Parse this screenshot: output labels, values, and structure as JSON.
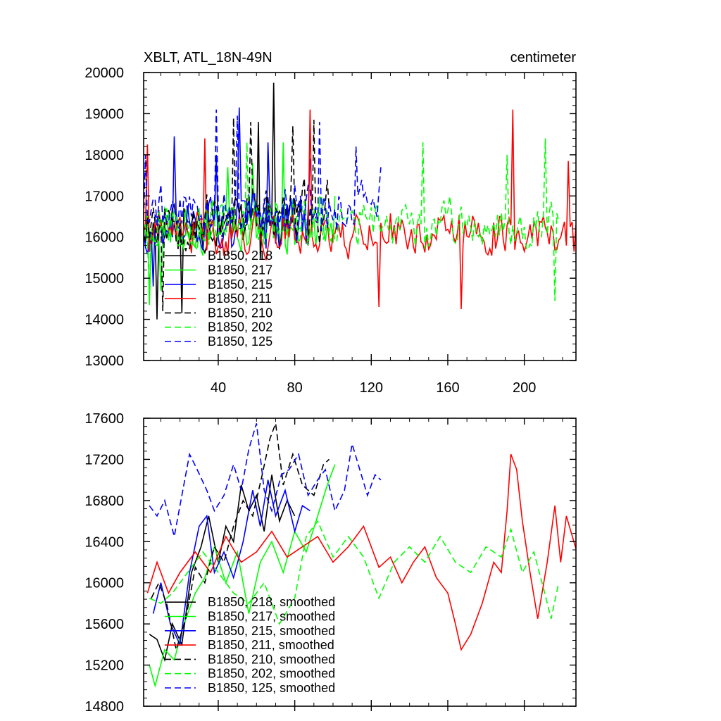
{
  "chart_data": [
    {
      "type": "line",
      "title": "XBLT, ATL_18N-49N",
      "unit_label": "centimeter",
      "xlim": [
        1,
        227
      ],
      "ylim": [
        13000,
        20000
      ],
      "x_ticks": [
        40,
        80,
        120,
        160,
        200
      ],
      "x_tick_labels": [
        "40",
        "80",
        "120",
        "160",
        "200"
      ],
      "y_ticks": [
        13000,
        14000,
        15000,
        16000,
        17000,
        18000,
        19000,
        20000
      ],
      "y_tick_labels": [
        "13000",
        "14000",
        "15000",
        "16000",
        "17000",
        "18000",
        "19000",
        "20000"
      ],
      "legend_position": "lower-left",
      "series": [
        {
          "name": "B1850, 218",
          "color": "#000000",
          "dash": "solid",
          "length": 83,
          "base": 16300,
          "amp": 800,
          "seed": 11,
          "points": [
            [
              8,
              14000
            ],
            [
              21,
              14150
            ],
            [
              38,
              16000
            ],
            [
              52,
              16800
            ],
            [
              61,
              18800
            ],
            [
              69,
              19750
            ],
            [
              72,
              15700
            ],
            [
              80,
              16900
            ]
          ]
        },
        {
          "name": "B1850, 217",
          "color": "#00ff00",
          "dash": "solid",
          "length": 101,
          "base": 16300,
          "amp": 800,
          "seed": 23,
          "points": [
            [
              4,
              14350
            ],
            [
              10,
              14700
            ],
            [
              30,
              16700
            ],
            [
              45,
              17700
            ],
            [
              58,
              17800
            ],
            [
              74,
              18300
            ],
            [
              84,
              16100
            ],
            [
              101,
              17000
            ]
          ]
        },
        {
          "name": "B1850, 215",
          "color": "#0000ff",
          "dash": "solid",
          "length": 88,
          "base": 16400,
          "amp": 850,
          "seed": 37,
          "points": [
            [
              6,
              14800
            ],
            [
              17,
              18450
            ],
            [
              39,
              18000
            ],
            [
              51,
              19150
            ],
            [
              66,
              18300
            ],
            [
              78,
              16950
            ],
            [
              88,
              17900
            ]
          ]
        },
        {
          "name": "B1850, 211",
          "color": "#ff0000",
          "dash": "solid",
          "length": 227,
          "base": 16100,
          "amp": 650,
          "seed": 41,
          "points": [
            [
              3,
              18250
            ],
            [
              33,
              18400
            ],
            [
              88,
              19100
            ],
            [
              124,
              14300
            ],
            [
              167,
              14250
            ],
            [
              194,
              19100
            ],
            [
              223,
              17850
            ]
          ]
        },
        {
          "name": "B1850, 210",
          "color": "#000000",
          "dash": "dashed",
          "length": 98,
          "base": 16500,
          "amp": 900,
          "seed": 53,
          "points": [
            [
              11,
              14200
            ],
            [
              37,
              16600
            ],
            [
              48,
              18900
            ],
            [
              57,
              18800
            ],
            [
              79,
              18700
            ],
            [
              90,
              18850
            ],
            [
              98,
              16700
            ]
          ]
        },
        {
          "name": "B1850, 202",
          "color": "#00ff00",
          "dash": "dashed",
          "length": 218,
          "base": 16300,
          "amp": 700,
          "seed": 67,
          "points": [
            [
              4,
              14700
            ],
            [
              55,
              18300
            ],
            [
              147,
              18300
            ],
            [
              191,
              18000
            ],
            [
              211,
              18400
            ],
            [
              216,
              14450
            ]
          ]
        },
        {
          "name": "B1850, 125",
          "color": "#0000ff",
          "dash": "dashed",
          "length": 125,
          "base": 16700,
          "amp": 700,
          "seed": 79,
          "points": [
            [
              2,
              18000
            ],
            [
              39,
              19100
            ],
            [
              50,
              18950
            ],
            [
              93,
              18800
            ],
            [
              112,
              18200
            ],
            [
              125,
              17700
            ]
          ]
        }
      ]
    },
    {
      "type": "line",
      "xlim": [
        1,
        227
      ],
      "ylim": [
        14800,
        17600
      ],
      "x_ticks": [
        40,
        80,
        120,
        160,
        200
      ],
      "x_tick_labels": [
        "",
        "",
        "",
        "",
        ""
      ],
      "y_ticks": [
        14800,
        15200,
        15600,
        16000,
        16400,
        16800,
        17200,
        17600
      ],
      "y_tick_labels": [
        "14800",
        "15200",
        "15600",
        "16000",
        "16400",
        "16800",
        "17200",
        "17600"
      ],
      "legend_position": "lower-left",
      "series": [
        {
          "name": "B1850, 218, smoothed",
          "color": "#000000",
          "dash": "solid",
          "length": 83,
          "points": [
            [
              4,
              15500
            ],
            [
              8,
              15450
            ],
            [
              12,
              15250
            ],
            [
              16,
              15600
            ],
            [
              21,
              15400
            ],
            [
              26,
              16100
            ],
            [
              31,
              16350
            ],
            [
              35,
              16650
            ],
            [
              40,
              16200
            ],
            [
              44,
              16550
            ],
            [
              48,
              16400
            ],
            [
              52,
              16950
            ],
            [
              56,
              16700
            ],
            [
              60,
              16850
            ],
            [
              64,
              16500
            ],
            [
              68,
              17050
            ],
            [
              72,
              16600
            ],
            [
              76,
              16800
            ],
            [
              80,
              16650
            ]
          ]
        },
        {
          "name": "B1850, 217",
          "color": "#00ff00",
          "dash": "solid",
          "length": 101,
          "label": "B1850, 217, smoothed",
          "points": [
            [
              4,
              15200
            ],
            [
              7,
              15000
            ],
            [
              12,
              15350
            ],
            [
              17,
              15250
            ],
            [
              22,
              15600
            ],
            [
              28,
              15900
            ],
            [
              33,
              16050
            ],
            [
              38,
              16350
            ],
            [
              44,
              16000
            ],
            [
              50,
              16300
            ],
            [
              56,
              15700
            ],
            [
              62,
              16200
            ],
            [
              68,
              16400
            ],
            [
              74,
              16100
            ],
            [
              80,
              16500
            ],
            [
              86,
              16300
            ],
            [
              92,
              16650
            ],
            [
              97,
              16950
            ],
            [
              101,
              17150
            ]
          ]
        },
        {
          "name": "B1850, 215, smoothed",
          "color": "#0000ff",
          "dash": "solid",
          "length": 88,
          "points": [
            [
              6,
              15700
            ],
            [
              10,
              16000
            ],
            [
              15,
              15600
            ],
            [
              20,
              15400
            ],
            [
              25,
              16100
            ],
            [
              30,
              16550
            ],
            [
              34,
              16650
            ],
            [
              38,
              16100
            ],
            [
              43,
              16300
            ],
            [
              48,
              16050
            ],
            [
              53,
              16400
            ],
            [
              58,
              16900
            ],
            [
              62,
              16550
            ],
            [
              66,
              17000
            ],
            [
              70,
              16650
            ],
            [
              75,
              16900
            ],
            [
              80,
              16500
            ],
            [
              84,
              16750
            ],
            [
              88,
              16700
            ]
          ]
        },
        {
          "name": "B1850, 211, smoothed",
          "color": "#ff0000",
          "dash": "solid",
          "length": 227,
          "points": [
            [
              3,
              15900
            ],
            [
              8,
              16200
            ],
            [
              14,
              15900
            ],
            [
              20,
              16100
            ],
            [
              28,
              16300
            ],
            [
              36,
              16100
            ],
            [
              44,
              16450
            ],
            [
              52,
              16200
            ],
            [
              60,
              16300
            ],
            [
              68,
              16500
            ],
            [
              76,
              16250
            ],
            [
              84,
              16350
            ],
            [
              92,
              16450
            ],
            [
              100,
              16200
            ],
            [
              108,
              16350
            ],
            [
              116,
              16550
            ],
            [
              124,
              16150
            ],
            [
              130,
              16250
            ],
            [
              136,
              16000
            ],
            [
              142,
              16200
            ],
            [
              148,
              16350
            ],
            [
              154,
              16050
            ],
            [
              160,
              15900
            ],
            [
              164,
              15600
            ],
            [
              167,
              15350
            ],
            [
              172,
              15500
            ],
            [
              178,
              15800
            ],
            [
              184,
              16200
            ],
            [
              188,
              16100
            ],
            [
              191,
              16700
            ],
            [
              193,
              17250
            ],
            [
              196,
              17100
            ],
            [
              199,
              16600
            ],
            [
              203,
              16100
            ],
            [
              207,
              15650
            ],
            [
              212,
              16200
            ],
            [
              216,
              16750
            ],
            [
              219,
              16200
            ],
            [
              222,
              16650
            ],
            [
              227,
              16330
            ]
          ]
        },
        {
          "name": "B1850, 210, smoothed",
          "color": "#000000",
          "dash": "dashed",
          "length": 98,
          "points": [
            [
              5,
              15850
            ],
            [
              9,
              16000
            ],
            [
              13,
              15800
            ],
            [
              18,
              15350
            ],
            [
              23,
              15650
            ],
            [
              28,
              16150
            ],
            [
              33,
              16000
            ],
            [
              38,
              16350
            ],
            [
              43,
              16200
            ],
            [
              48,
              16550
            ],
            [
              53,
              16800
            ],
            [
              58,
              16650
            ],
            [
              63,
              17050
            ],
            [
              67,
              17400
            ],
            [
              70,
              17550
            ],
            [
              74,
              16950
            ],
            [
              79,
              17250
            ],
            [
              84,
              16950
            ],
            [
              90,
              16850
            ],
            [
              95,
              17150
            ],
            [
              98,
              17200
            ]
          ]
        },
        {
          "name": "B1850, 202, smoothed",
          "color": "#00ff00",
          "dash": "dashed",
          "length": 218,
          "points": [
            [
              4,
              15850
            ],
            [
              10,
              15800
            ],
            [
              16,
              15900
            ],
            [
              24,
              16100
            ],
            [
              32,
              16300
            ],
            [
              40,
              16100
            ],
            [
              48,
              15900
            ],
            [
              56,
              15800
            ],
            [
              64,
              16000
            ],
            [
              72,
              15600
            ],
            [
              80,
              15850
            ],
            [
              86,
              16450
            ],
            [
              92,
              16600
            ],
            [
              100,
              16250
            ],
            [
              108,
              16450
            ],
            [
              116,
              16250
            ],
            [
              124,
              15850
            ],
            [
              132,
              16200
            ],
            [
              140,
              16350
            ],
            [
              148,
              16200
            ],
            [
              156,
              16450
            ],
            [
              164,
              16200
            ],
            [
              172,
              16100
            ],
            [
              180,
              16350
            ],
            [
              188,
              16250
            ],
            [
              193,
              16520
            ],
            [
              199,
              16100
            ],
            [
              205,
              16300
            ],
            [
              210,
              15950
            ],
            [
              214,
              15650
            ],
            [
              218,
              16000
            ]
          ]
        },
        {
          "name": "B1850, 125, smoothed",
          "color": "#0000ff",
          "dash": "dashed",
          "length": 125,
          "points": [
            [
              4,
              16750
            ],
            [
              8,
              16650
            ],
            [
              12,
              16800
            ],
            [
              17,
              16450
            ],
            [
              21,
              16850
            ],
            [
              25,
              17250
            ],
            [
              29,
              17100
            ],
            [
              34,
              16900
            ],
            [
              38,
              16700
            ],
            [
              43,
              16850
            ],
            [
              48,
              17150
            ],
            [
              52,
              16900
            ],
            [
              56,
              17300
            ],
            [
              60,
              17550
            ],
            [
              64,
              16900
            ],
            [
              68,
              16700
            ],
            [
              73,
              17050
            ],
            [
              77,
              17100
            ],
            [
              82,
              17250
            ],
            [
              87,
              16850
            ],
            [
              92,
              17000
            ],
            [
              96,
              17100
            ],
            [
              101,
              16700
            ],
            [
              106,
              16900
            ],
            [
              110,
              17350
            ],
            [
              114,
              17100
            ],
            [
              118,
              16850
            ],
            [
              122,
              17050
            ],
            [
              125,
              17000
            ]
          ]
        }
      ]
    }
  ]
}
